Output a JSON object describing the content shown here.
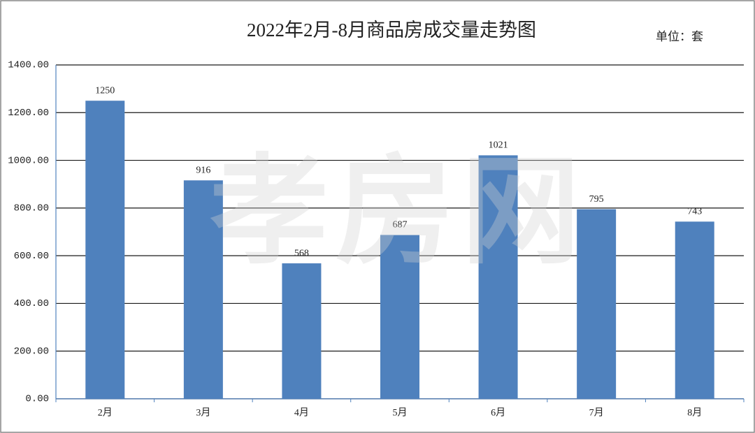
{
  "chart_data": {
    "type": "bar",
    "title": "2022年2月-8月商品房成交量走势图",
    "unit_label": "单位：套",
    "watermark": "孝房网",
    "categories": [
      "2月",
      "3月",
      "4月",
      "5月",
      "6月",
      "7月",
      "8月"
    ],
    "values": [
      1250,
      916,
      568,
      687,
      1021,
      795,
      743
    ],
    "color": "#4f81bd",
    "ylim": [
      0,
      1400
    ],
    "yticks": [
      {
        "value": 0,
        "label": "0.00"
      },
      {
        "value": 200,
        "label": "200.00"
      },
      {
        "value": 400,
        "label": "400.00"
      },
      {
        "value": 600,
        "label": "600.00"
      },
      {
        "value": 800,
        "label": "800.00"
      },
      {
        "value": 1000,
        "label": "1000.00"
      },
      {
        "value": 1200,
        "label": "1200.00"
      },
      {
        "value": 1400,
        "label": "1400.00"
      }
    ],
    "grid": true
  }
}
